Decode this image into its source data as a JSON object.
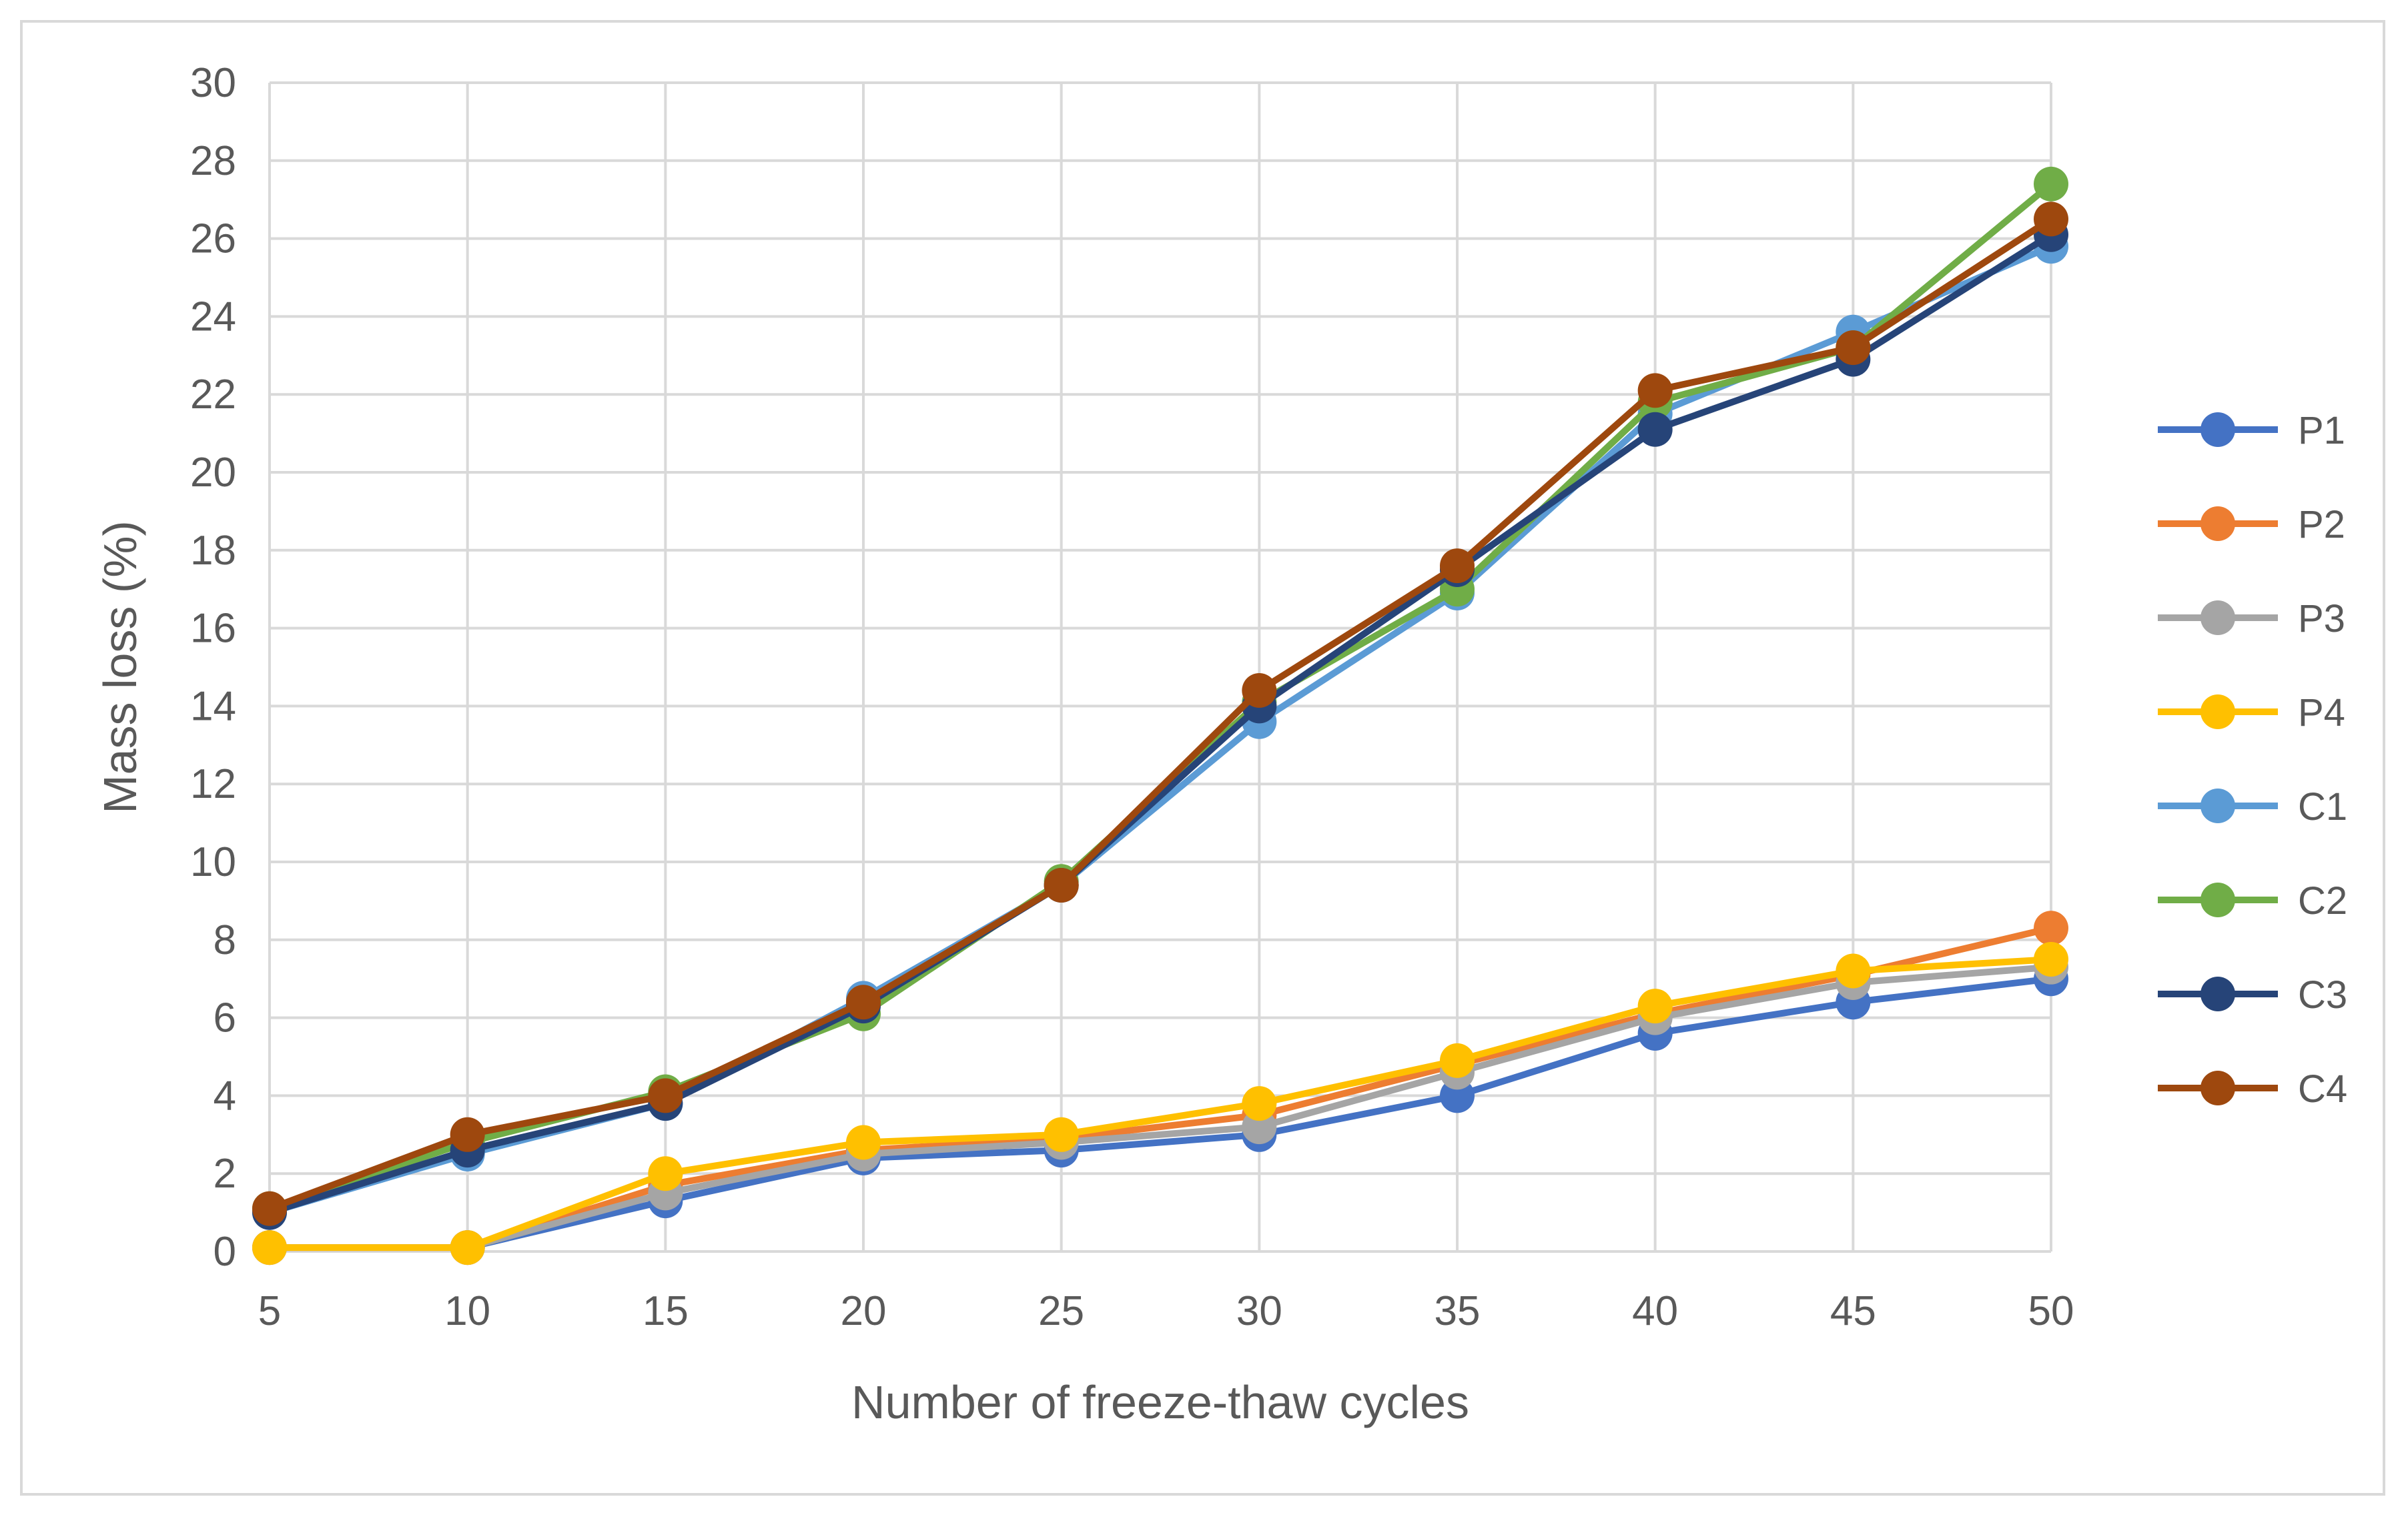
{
  "chart_data": {
    "type": "line",
    "title": "",
    "xlabel": "Number of freeze-thaw cycles",
    "ylabel": "Mass loss (%)",
    "x": [
      5,
      10,
      15,
      20,
      25,
      30,
      35,
      40,
      45,
      50
    ],
    "xlim": [
      5,
      50
    ],
    "ylim": [
      0,
      30
    ],
    "yticks": [
      0,
      2,
      4,
      6,
      8,
      10,
      12,
      14,
      16,
      18,
      20,
      22,
      24,
      26,
      28,
      30
    ],
    "grid": true,
    "legend_position": "right",
    "series": [
      {
        "name": "P1",
        "color": "#4472c4",
        "values": [
          0.1,
          0.1,
          1.3,
          2.4,
          2.6,
          3.0,
          4.0,
          5.6,
          6.4,
          7.0
        ]
      },
      {
        "name": "P2",
        "color": "#ed7d31",
        "values": [
          0.1,
          0.1,
          1.7,
          2.6,
          2.9,
          3.5,
          4.8,
          6.1,
          7.1,
          8.3
        ]
      },
      {
        "name": "P3",
        "color": "#a5a5a5",
        "values": [
          0.1,
          0.1,
          1.5,
          2.5,
          2.8,
          3.2,
          4.6,
          6.0,
          6.9,
          7.3
        ]
      },
      {
        "name": "P4",
        "color": "#ffc000",
        "values": [
          0.1,
          0.1,
          2.0,
          2.8,
          3.0,
          3.8,
          4.9,
          6.3,
          7.2,
          7.5
        ]
      },
      {
        "name": "C1",
        "color": "#5b9bd5",
        "values": [
          1.0,
          2.5,
          3.8,
          6.5,
          9.4,
          13.6,
          16.9,
          21.5,
          23.6,
          25.8
        ]
      },
      {
        "name": "C2",
        "color": "#70ad47",
        "values": [
          1.1,
          2.8,
          4.1,
          6.1,
          9.5,
          14.1,
          17.0,
          21.8,
          23.2,
          27.4
        ]
      },
      {
        "name": "C3",
        "color": "#264478",
        "values": [
          1.0,
          2.6,
          3.8,
          6.3,
          9.4,
          14.0,
          17.5,
          21.1,
          22.9,
          26.1
        ]
      },
      {
        "name": "C4",
        "color": "#9e480e",
        "values": [
          1.1,
          3.0,
          4.0,
          6.4,
          9.4,
          14.4,
          17.6,
          22.1,
          23.2,
          26.5
        ]
      }
    ]
  }
}
